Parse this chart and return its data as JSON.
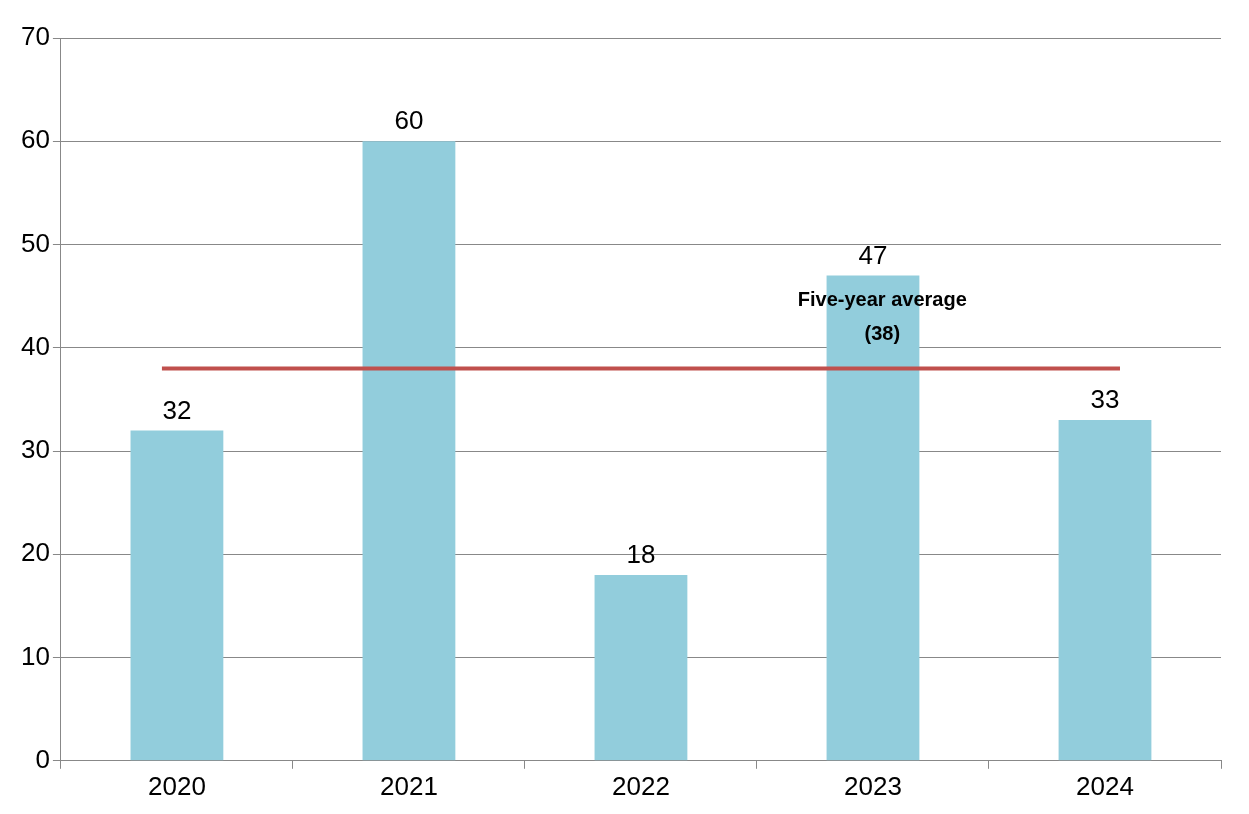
{
  "chart_data": {
    "type": "bar",
    "categories": [
      "2020",
      "2021",
      "2022",
      "2023",
      "2024"
    ],
    "values": [
      32,
      60,
      18,
      47,
      33
    ],
    "color": "#92cddc",
    "ylim": [
      0,
      70
    ],
    "yticks": [
      0,
      10,
      20,
      30,
      40,
      50,
      60,
      70
    ],
    "grid": "y",
    "data_labels": true,
    "legend": false,
    "ref_lines": [
      {
        "axis": "y",
        "value": 38,
        "label": "Five-year average\n(38)",
        "color": "#c0504d",
        "line_style": "solid"
      }
    ]
  }
}
